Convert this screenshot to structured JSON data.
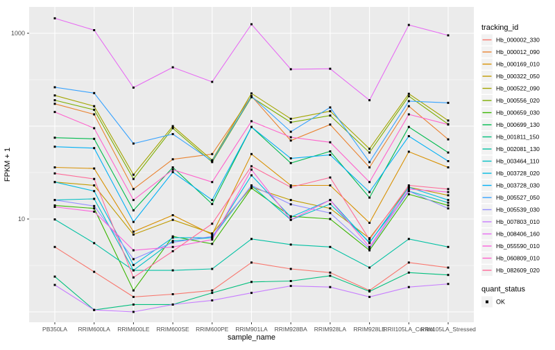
{
  "figure": {
    "background": "#FFFFFF",
    "panel_bg": "#EBEBEB",
    "grid_color": "#FFFFFF",
    "tick_color": "#333333",
    "tick_label_color": "#4D4D4D",
    "legend_key_bg": "#F2F2F2"
  },
  "axes": {
    "x_title": "sample_name",
    "y_title": "FPKM + 1",
    "y_tick_labels": [
      "1000",
      "10"
    ]
  },
  "legend": {
    "tracking_title": "tracking_id",
    "quant_title": "quant_status",
    "quant_items": [
      {
        "label": "OK",
        "marker": "black-square"
      }
    ]
  },
  "chart_data": {
    "type": "line",
    "title": "",
    "xlabel": "sample_name",
    "ylabel": "FPKM + 1",
    "y_scale": "log10",
    "y_ticks_labeled": [
      1000,
      10
    ],
    "y_gridlines_major": [
      1,
      10,
      100,
      1000
    ],
    "y_gridlines_minor": [
      3.1623,
      31.623,
      316.23
    ],
    "ylim": [
      0.85,
      1600
    ],
    "legend_position": "right",
    "grid": true,
    "point_marker": {
      "shape": "square",
      "color": "#000000",
      "size": 3
    },
    "categories": [
      "PB350LA",
      "RRIM600LA",
      "RRIM600LE",
      "RRIM600SE",
      "RRIM600PE",
      "RRIM901LA",
      "RRIM928BA",
      "RRIM928LA",
      "RRIM928LE",
      "RRII105LA_Control",
      "RRII105LA_Stressed"
    ],
    "series": [
      {
        "name": "Hb_000002_330",
        "color": "#F8766D",
        "values": [
          5.0,
          2.7,
          1.45,
          1.55,
          1.7,
          3.4,
          2.9,
          2.65,
          1.7,
          3.4,
          3.0
        ]
      },
      {
        "name": "Hb_000012_090",
        "color": "#EA8331",
        "values": [
          174,
          134,
          21,
          44,
          50,
          210,
          70,
          104,
          36,
          164,
          72
        ]
      },
      {
        "name": "Hb_000169_010",
        "color": "#D89000",
        "values": [
          36,
          35,
          7.3,
          11,
          6.8,
          50,
          23,
          23,
          9.1,
          53,
          36
        ]
      },
      {
        "name": "Hb_000322_050",
        "color": "#C09B00",
        "values": [
          25,
          23,
          6.8,
          9.8,
          7.0,
          22,
          16,
          13,
          6.2,
          22,
          18
        ]
      },
      {
        "name": "Hb_000522_090",
        "color": "#A3A500",
        "values": [
          214,
          164,
          30,
          100,
          43,
          225,
          120,
          145,
          57,
          223,
          115
        ]
      },
      {
        "name": "Hb_000556_020",
        "color": "#7CAE00",
        "values": [
          190,
          150,
          27,
          95,
          41,
          205,
          110,
          130,
          52,
          210,
          105
        ]
      },
      {
        "name": "Hb_000659_030",
        "color": "#39B600",
        "values": [
          14,
          13,
          1.7,
          6.5,
          5.4,
          21.5,
          10.7,
          10,
          4.6,
          18.5,
          14
        ]
      },
      {
        "name": "Hb_000699_130",
        "color": "#00BB4E",
        "values": [
          75,
          73,
          12.4,
          36,
          14.5,
          98,
          40,
          53.5,
          17,
          98,
          52
        ]
      },
      {
        "name": "Hb_001811_150",
        "color": "#00BF7D",
        "values": [
          2.4,
          1.05,
          1.2,
          1.2,
          1.6,
          2.1,
          2.15,
          2.45,
          1.66,
          2.65,
          2.5
        ]
      },
      {
        "name": "Hb_002081_130",
        "color": "#00C1A3",
        "values": [
          9.9,
          5.5,
          2.8,
          2.8,
          2.9,
          6.1,
          5.3,
          5.0,
          3.0,
          6.1,
          5.0
        ]
      },
      {
        "name": "Hb_003464_110",
        "color": "#00BFC4",
        "values": [
          16,
          16.5,
          2.8,
          5.8,
          6.3,
          23,
          9.8,
          14.5,
          5.6,
          20,
          15
        ]
      },
      {
        "name": "Hb_003728_020",
        "color": "#00BAE0",
        "values": [
          25,
          20,
          3.2,
          6.3,
          6.3,
          29.5,
          10.5,
          16,
          5.5,
          22,
          16
        ]
      },
      {
        "name": "Hb_003728_030",
        "color": "#00B0F6",
        "values": [
          60,
          58,
          9.3,
          32,
          16,
          98,
          45,
          49,
          19.5,
          78,
          42
        ]
      },
      {
        "name": "Hb_005527_050",
        "color": "#35A2FF",
        "values": [
          262,
          227,
          65,
          82,
          42,
          210,
          87,
          159,
          41,
          186,
          178
        ]
      },
      {
        "name": "Hb_005539_030",
        "color": "#9590FF",
        "values": [
          16,
          13.8,
          3.7,
          5.6,
          6.5,
          23,
          14.4,
          11.6,
          4.8,
          20,
          13
        ]
      },
      {
        "name": "Hb_007803_010",
        "color": "#C77CFF",
        "values": [
          1.95,
          1.05,
          1.0,
          1.2,
          1.33,
          1.6,
          1.9,
          1.85,
          1.45,
          1.85,
          2.0
        ]
      },
      {
        "name": "Hb_008406_160",
        "color": "#E76BF3",
        "values": [
          1450,
          1080,
          260,
          430,
          300,
          1250,
          410,
          415,
          190,
          1230,
          950
        ]
      },
      {
        "name": "Hb_055590_010",
        "color": "#FA62DB",
        "values": [
          13.5,
          12,
          4.6,
          5.0,
          6.0,
          34,
          9.8,
          16,
          5.0,
          21,
          19.5
        ]
      },
      {
        "name": "Hb_060809_010",
        "color": "#FF61CC",
        "values": [
          142,
          95,
          16,
          34,
          25,
          113,
          76,
          67,
          25,
          134,
          104
        ]
      },
      {
        "name": "Hb_082609_020",
        "color": "#FF6A98",
        "values": [
          31,
          27,
          2.35,
          4.5,
          8.9,
          37,
          22,
          28,
          6.0,
          23,
          21
        ]
      }
    ]
  }
}
